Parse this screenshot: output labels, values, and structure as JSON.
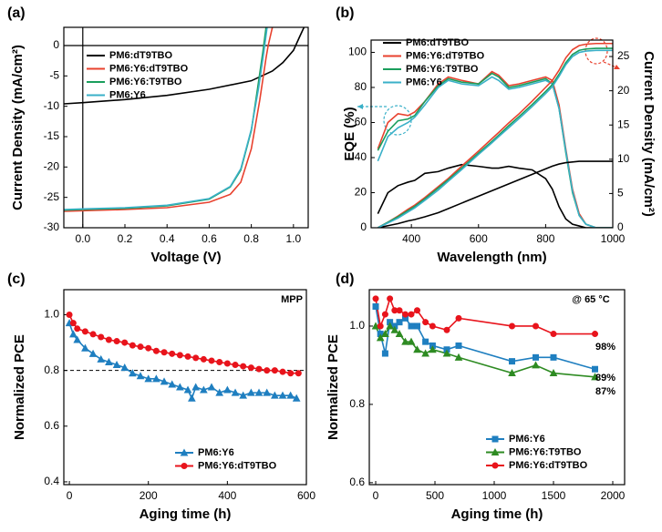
{
  "chart_data": [
    {
      "type": "line",
      "label": "(a)",
      "xlabel": "Voltage (V)",
      "ylabel": "Current Density (mA/cm²)",
      "xlim": [
        -0.09,
        1.07
      ],
      "ylim": [
        -30,
        3
      ],
      "xticks": [
        {
          "value": 0,
          "label": "0.0"
        },
        0.2,
        0.4,
        0.6,
        0.8,
        {
          "value": 1,
          "label": "1.0"
        }
      ],
      "yticks": [
        0,
        -5,
        -10,
        -15,
        -20,
        -25,
        -30
      ],
      "zero_lines": true,
      "legend": "upper left",
      "series": [
        {
          "name": "PM6:dT9TBO",
          "color": "#000000",
          "x": [
            -0.09,
            0,
            0.2,
            0.4,
            0.6,
            0.8,
            0.9,
            0.95,
            1.0,
            1.03,
            1.05
          ],
          "values": [
            -9.6,
            -9.4,
            -8.9,
            -8.2,
            -7.2,
            -5.8,
            -4.2,
            -2.8,
            -0.8,
            1.5,
            3
          ]
        },
        {
          "name": "PM6:Y6:dT9TBO",
          "color": "#e8412e",
          "x": [
            -0.09,
            0,
            0.2,
            0.4,
            0.6,
            0.7,
            0.75,
            0.8,
            0.84,
            0.87,
            0.88,
            0.9
          ],
          "values": [
            -27.3,
            -27.2,
            -27.0,
            -26.7,
            -25.8,
            -24.5,
            -22.5,
            -17,
            -9,
            -2,
            0,
            3
          ]
        },
        {
          "name": "PM6:Y6:T9TBO",
          "color": "#1a9e5c",
          "x": [
            -0.09,
            0,
            0.2,
            0.4,
            0.6,
            0.7,
            0.75,
            0.8,
            0.83,
            0.855,
            0.87
          ],
          "values": [
            -27.1,
            -27.0,
            -26.8,
            -26.4,
            -25.3,
            -23.3,
            -20.5,
            -14,
            -7,
            -1,
            3
          ]
        },
        {
          "name": "PM6:Y6",
          "color": "#3ab0c8",
          "x": [
            -0.09,
            0,
            0.2,
            0.4,
            0.6,
            0.7,
            0.75,
            0.8,
            0.835,
            0.86,
            0.875
          ],
          "values": [
            -27.0,
            -26.9,
            -26.7,
            -26.3,
            -25.2,
            -23.2,
            -20.3,
            -13.8,
            -6.9,
            -0.9,
            3
          ]
        }
      ]
    },
    {
      "type": "line",
      "label": "(b)",
      "xlabel": "Wavelength (nm)",
      "ylabel": "EQE (%)",
      "y2label": "Current Density (mA/cm²)",
      "xlim": [
        280,
        1000
      ],
      "ylim": [
        0,
        107
      ],
      "y2lim": [
        0,
        27.4
      ],
      "xticks": [
        400,
        600,
        800,
        1000
      ],
      "yticks": [
        0,
        20,
        40,
        60,
        80,
        100
      ],
      "y2ticks": [
        0,
        5,
        10,
        15,
        20,
        25
      ],
      "legend": "upper left",
      "x": [
        300,
        330,
        360,
        390,
        410,
        440,
        480,
        510,
        550,
        600,
        640,
        660,
        690,
        720,
        760,
        800,
        820,
        840,
        860,
        880,
        900,
        920,
        950,
        1000
      ],
      "series": [
        {
          "name": "PM6:dT9TBO",
          "color": "#000000",
          "values": [
            8,
            20,
            24,
            26,
            27,
            31,
            32,
            34,
            36,
            35,
            34,
            34,
            35,
            34,
            33,
            28,
            22,
            12,
            5,
            2,
            1,
            0,
            0,
            0
          ]
        },
        {
          "name": "PM6:Y6:dT9TBO",
          "color": "#e8412e",
          "values": [
            45,
            60,
            65,
            64,
            66,
            72,
            82,
            86,
            84,
            82,
            89,
            87,
            81,
            82,
            84,
            86,
            84,
            70,
            45,
            22,
            8,
            2,
            0,
            0
          ]
        },
        {
          "name": "PM6:Y6:T9TBO",
          "color": "#1a9e5c",
          "values": [
            44,
            55,
            61,
            62,
            64,
            72,
            81,
            85,
            83,
            82,
            88,
            86,
            80,
            81,
            83,
            85,
            82,
            68,
            43,
            20,
            7,
            2,
            0,
            0
          ]
        },
        {
          "name": "PM6:Y6",
          "color": "#3ab0c8",
          "values": [
            38,
            52,
            57,
            60,
            63,
            70,
            80,
            84,
            82,
            81,
            86,
            84,
            79,
            80,
            82,
            84,
            82,
            68,
            44,
            21,
            7,
            2,
            0,
            0
          ]
        },
        {
          "color": "#000000",
          "axis": "y2",
          "values": [
            0,
            0.3,
            0.6,
            1.0,
            1.2,
            1.6,
            2.2,
            2.8,
            3.6,
            4.6,
            5.4,
            5.8,
            6.4,
            7.0,
            7.8,
            8.6,
            9.0,
            9.3,
            9.5,
            9.6,
            9.7,
            9.7,
            9.7,
            9.7
          ]
        },
        {
          "color": "#e8412e",
          "axis": "y2",
          "values": [
            0,
            0.8,
            1.7,
            2.7,
            3.3,
            4.4,
            6.0,
            7.2,
            9.0,
            11.2,
            13.0,
            13.9,
            15.3,
            16.6,
            18.5,
            20.5,
            21.5,
            23.0,
            24.8,
            26.0,
            26.6,
            26.8,
            26.9,
            26.9
          ]
        },
        {
          "color": "#1a9e5c",
          "axis": "y2",
          "values": [
            0,
            0.8,
            1.6,
            2.5,
            3.1,
            4.2,
            5.8,
            7.0,
            8.7,
            10.9,
            12.6,
            13.5,
            14.9,
            16.2,
            18.0,
            19.9,
            20.9,
            22.4,
            24.1,
            25.3,
            25.9,
            26.1,
            26.2,
            26.2
          ]
        },
        {
          "color": "#3ab0c8",
          "axis": "y2",
          "values": [
            0,
            0.7,
            1.4,
            2.3,
            2.9,
            4.0,
            5.5,
            6.8,
            8.5,
            10.7,
            12.4,
            13.3,
            14.6,
            15.9,
            17.7,
            19.6,
            20.6,
            22.1,
            23.8,
            25.0,
            25.6,
            25.8,
            25.9,
            25.9
          ]
        }
      ]
    },
    {
      "type": "line",
      "label": "(c)",
      "xlabel": "Aging time (h)",
      "ylabel": "Normalized PCE",
      "xlim": [
        -14,
        600
      ],
      "ylim": [
        0.39,
        1.09
      ],
      "xticks": [
        0,
        200,
        400,
        600
      ],
      "yticks": [
        0.4,
        0.6,
        0.8,
        {
          "value": 1,
          "label": "1.0"
        }
      ],
      "reference_line": 0.8,
      "annotations": [
        "MPP"
      ],
      "legend": "lower right",
      "series": [
        {
          "name": "PM6:Y6",
          "color": "#1f7fc0",
          "marker": "triangle",
          "x": [
            0,
            10,
            20,
            40,
            60,
            80,
            100,
            120,
            140,
            160,
            180,
            200,
            220,
            240,
            260,
            280,
            300,
            310,
            320,
            340,
            360,
            380,
            400,
            420,
            440,
            460,
            480,
            500,
            520,
            540,
            560,
            575
          ],
          "values": [
            0.97,
            0.93,
            0.91,
            0.88,
            0.86,
            0.84,
            0.83,
            0.82,
            0.81,
            0.79,
            0.78,
            0.77,
            0.77,
            0.76,
            0.75,
            0.74,
            0.73,
            0.7,
            0.74,
            0.73,
            0.74,
            0.72,
            0.73,
            0.72,
            0.71,
            0.72,
            0.72,
            0.72,
            0.71,
            0.71,
            0.71,
            0.7
          ]
        },
        {
          "name": "PM6:Y6:dT9TBO",
          "color": "#e8141c",
          "marker": "circle",
          "x": [
            0,
            10,
            20,
            40,
            60,
            80,
            100,
            120,
            140,
            160,
            180,
            200,
            220,
            240,
            260,
            280,
            300,
            320,
            340,
            360,
            380,
            400,
            420,
            440,
            460,
            480,
            500,
            520,
            540,
            560,
            580
          ],
          "values": [
            1.0,
            0.97,
            0.95,
            0.94,
            0.93,
            0.92,
            0.91,
            0.905,
            0.9,
            0.89,
            0.885,
            0.88,
            0.87,
            0.865,
            0.86,
            0.855,
            0.85,
            0.845,
            0.84,
            0.835,
            0.83,
            0.825,
            0.82,
            0.815,
            0.81,
            0.805,
            0.8,
            0.8,
            0.795,
            0.79,
            0.79
          ]
        }
      ]
    },
    {
      "type": "line",
      "label": "(d)",
      "xlabel": "Aging time (h)",
      "ylabel": "Normalized PCE",
      "xlim": [
        -54,
        2100
      ],
      "ylim": [
        0.595,
        1.093
      ],
      "xticks": [
        0,
        500,
        1000,
        1500,
        2000
      ],
      "yticks": [
        0.6,
        0.8,
        {
          "value": 1,
          "label": "1.0"
        }
      ],
      "annotations": [
        "@ 65 °C",
        "98%",
        "89%",
        "87%"
      ],
      "legend": "lower right",
      "series": [
        {
          "name": "PM6:Y6",
          "color": "#1f7fc0",
          "marker": "square",
          "x": [
            0,
            40,
            80,
            120,
            160,
            200,
            250,
            300,
            350,
            420,
            480,
            600,
            700,
            1150,
            1350,
            1500,
            1850
          ],
          "values": [
            1.05,
            0.98,
            0.93,
            1.01,
            1.0,
            1.01,
            1.02,
            1.0,
            1.0,
            0.96,
            0.95,
            0.94,
            0.95,
            0.91,
            0.92,
            0.92,
            0.89
          ]
        },
        {
          "name": "PM6:Y6:T9TBO",
          "color": "#2e8b22",
          "marker": "triangle",
          "x": [
            0,
            40,
            80,
            120,
            160,
            200,
            250,
            300,
            350,
            420,
            480,
            600,
            700,
            1150,
            1350,
            1500,
            1850
          ],
          "values": [
            1.0,
            0.97,
            0.98,
            1.0,
            0.99,
            0.98,
            0.96,
            0.96,
            0.94,
            0.93,
            0.94,
            0.93,
            0.92,
            0.88,
            0.9,
            0.88,
            0.87
          ]
        },
        {
          "name": "PM6:Y6:dT9TBO",
          "color": "#e8141c",
          "marker": "circle",
          "x": [
            0,
            40,
            80,
            120,
            160,
            200,
            250,
            300,
            350,
            420,
            480,
            600,
            700,
            1150,
            1350,
            1500,
            1850
          ],
          "values": [
            1.07,
            1.0,
            1.03,
            1.07,
            1.04,
            1.04,
            1.03,
            1.03,
            1.04,
            1.01,
            1.0,
            0.99,
            1.02,
            1.0,
            1.0,
            0.98,
            0.98
          ]
        }
      ]
    }
  ]
}
